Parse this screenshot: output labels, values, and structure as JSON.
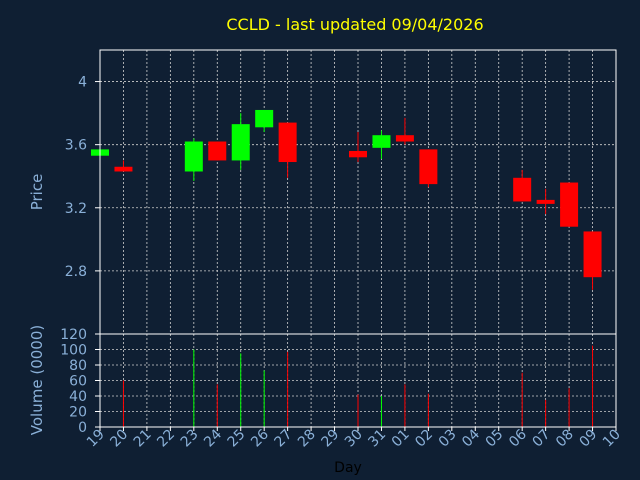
{
  "title": "CCLD - last updated 09/04/2026",
  "colors": {
    "background": "#0f1f33",
    "title": "#ffff00",
    "axis_text": "#8ab0d8",
    "frame": "#ffffff",
    "grid": "#d0d0d0",
    "up": "#00ff00",
    "down": "#ff0000"
  },
  "chart_data": [
    {
      "type": "candlestick",
      "ylabel": "Price",
      "ylim": [
        2.4,
        4.2
      ],
      "yticks": [
        "2.8",
        "3.2",
        "3.6",
        "4"
      ],
      "ytick_values": [
        2.8,
        3.2,
        3.6,
        4.0
      ],
      "grid": true,
      "x_tick_labels": [
        "19",
        "20",
        "21",
        "22",
        "23",
        "24",
        "25",
        "26",
        "27",
        "28",
        "29",
        "30",
        "31",
        "01",
        "02",
        "03",
        "04",
        "05",
        "06",
        "07",
        "08",
        "09",
        "10"
      ],
      "candles": [
        {
          "day": "19",
          "open": 3.53,
          "close": 3.57,
          "high": 3.57,
          "low": 3.53
        },
        {
          "day": "20",
          "open": 3.46,
          "close": 3.43,
          "high": 3.5,
          "low": 3.43
        },
        {
          "day": "23",
          "open": 3.43,
          "close": 3.62,
          "high": 3.64,
          "low": 3.37
        },
        {
          "day": "24",
          "open": 3.62,
          "close": 3.5,
          "high": 3.62,
          "low": 3.5
        },
        {
          "day": "25",
          "open": 3.5,
          "close": 3.73,
          "high": 3.8,
          "low": 3.44
        },
        {
          "day": "26",
          "open": 3.71,
          "close": 3.82,
          "high": 3.82,
          "low": 3.68
        },
        {
          "day": "27",
          "open": 3.74,
          "close": 3.49,
          "high": 3.74,
          "low": 3.39
        },
        {
          "day": "30",
          "open": 3.56,
          "close": 3.52,
          "high": 3.68,
          "low": 3.49
        },
        {
          "day": "31",
          "open": 3.58,
          "close": 3.66,
          "high": 3.69,
          "low": 3.51
        },
        {
          "day": "01",
          "open": 3.66,
          "close": 3.62,
          "high": 3.77,
          "low": 3.6
        },
        {
          "day": "02",
          "open": 3.57,
          "close": 3.35,
          "high": 3.57,
          "low": 3.33
        },
        {
          "day": "06",
          "open": 3.39,
          "close": 3.24,
          "high": 3.44,
          "low": 3.24
        },
        {
          "day": "07",
          "open": 3.25,
          "close": 3.23,
          "high": 3.32,
          "low": 3.16
        },
        {
          "day": "08",
          "open": 3.36,
          "close": 3.08,
          "high": 3.36,
          "low": 3.08
        },
        {
          "day": "09",
          "open": 3.05,
          "close": 2.76,
          "high": 3.05,
          "low": 2.68
        }
      ]
    },
    {
      "type": "bar",
      "ylabel": "Volume (0000)",
      "xlabel": "Day",
      "ylim": [
        0,
        120
      ],
      "yticks": [
        "0",
        "20",
        "40",
        "60",
        "80",
        "100",
        "120"
      ],
      "ytick_values": [
        0,
        20,
        40,
        60,
        80,
        100,
        120
      ],
      "grid": true,
      "bars": [
        {
          "day": "20",
          "value": 60,
          "direction": "down"
        },
        {
          "day": "23",
          "value": 100,
          "direction": "up"
        },
        {
          "day": "24",
          "value": 55,
          "direction": "down"
        },
        {
          "day": "25",
          "value": 95,
          "direction": "up"
        },
        {
          "day": "26",
          "value": 73,
          "direction": "up"
        },
        {
          "day": "27",
          "value": 97,
          "direction": "down"
        },
        {
          "day": "30",
          "value": 42,
          "direction": "down"
        },
        {
          "day": "31",
          "value": 40,
          "direction": "up"
        },
        {
          "day": "01",
          "value": 55,
          "direction": "down"
        },
        {
          "day": "02",
          "value": 43,
          "direction": "down"
        },
        {
          "day": "06",
          "value": 70,
          "direction": "down"
        },
        {
          "day": "07",
          "value": 35,
          "direction": "down"
        },
        {
          "day": "08",
          "value": 50,
          "direction": "down"
        },
        {
          "day": "09",
          "value": 105,
          "direction": "down"
        }
      ]
    }
  ]
}
